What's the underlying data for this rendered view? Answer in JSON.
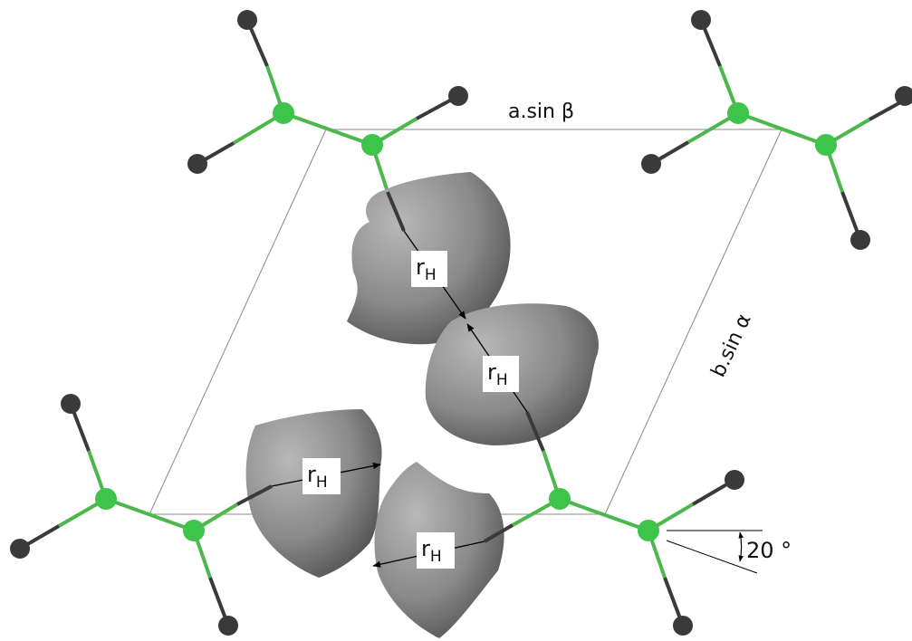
{
  "labels": {
    "a_sin_beta": "a.sin β",
    "b_sin_alpha": "b.sin α",
    "r_symbol": "r",
    "r_subscript": "H",
    "angle": "20 °"
  },
  "colors": {
    "carbon": "#3ec44a",
    "bond_green": "#4cb84c",
    "hydrogen": "#3a3a3a",
    "bond_dark": "#3a3a3a",
    "cell": "#8a8a8a",
    "blob_light": "#b4b4b4",
    "blob_dark": "#4a4a4a",
    "text": "#111111"
  }
}
